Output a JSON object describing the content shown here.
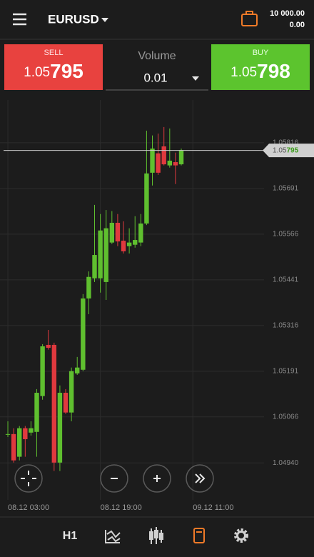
{
  "header": {
    "symbol": "EURUSD",
    "balance": "10 000.00",
    "margin": "0.00"
  },
  "trade": {
    "sell": {
      "label": "SELL",
      "price_big": "1.05",
      "price_pips": "795"
    },
    "volume": {
      "label": "Volume",
      "value": "0.01"
    },
    "buy": {
      "label": "BUY",
      "price_big": "1.05",
      "price_pips": "798"
    }
  },
  "chart_data": {
    "type": "candlestick",
    "x": [
      0,
      1,
      2,
      3,
      4,
      5,
      6,
      7,
      8,
      9,
      10,
      11,
      12,
      13,
      14,
      15,
      16,
      17,
      18,
      19,
      20,
      21,
      22,
      23,
      24,
      25,
      26,
      27,
      28,
      29,
      30
    ],
    "open": [
      1.05017,
      1.05019,
      1.04957,
      1.05035,
      1.05023,
      1.05025,
      1.05123,
      1.05263,
      1.05263,
      1.04941,
      1.05132,
      1.05078,
      1.05185,
      1.05195,
      1.0539,
      1.05445,
      1.05445,
      1.05435,
      1.05543,
      1.05597,
      1.05548,
      1.05533,
      1.05537,
      1.05543,
      1.05595,
      1.05734,
      1.05787,
      1.05806,
      1.05754,
      1.05763,
      1.05757
    ],
    "high": [
      1.05054,
      1.05035,
      1.05041,
      1.05041,
      1.05054,
      1.05142,
      1.05265,
      1.05304,
      1.05269,
      1.05152,
      1.05142,
      1.05201,
      1.0523,
      1.05402,
      1.05464,
      1.05646,
      1.05621,
      1.05632,
      1.05629,
      1.05621,
      1.05601,
      1.05582,
      1.05615,
      1.05621,
      1.05849,
      1.05836,
      1.05841,
      1.05859,
      1.05855,
      1.05789,
      1.058
    ],
    "low": [
      1.05011,
      1.04941,
      1.04947,
      1.04957,
      1.05015,
      1.04957,
      1.05113,
      1.0525,
      1.04918,
      1.04918,
      1.05074,
      1.05054,
      1.05181,
      1.05191,
      1.05347,
      1.05435,
      1.05406,
      1.05386,
      1.05539,
      1.05533,
      1.05513,
      1.05513,
      1.05529,
      1.05533,
      1.05591,
      1.05699,
      1.05728,
      1.05754,
      1.05748,
      1.05703,
      1.05754
    ],
    "close": [
      1.05019,
      1.04947,
      1.05035,
      1.05005,
      1.05035,
      1.05132,
      1.05259,
      1.05255,
      1.04941,
      1.05132,
      1.05078,
      1.05191,
      1.05201,
      1.0539,
      1.05449,
      1.05509,
      1.05576,
      1.05582,
      1.05597,
      1.05546,
      1.05519,
      1.05543,
      1.0555,
      1.05595,
      1.05732,
      1.058,
      1.05734,
      1.05757,
      1.05767,
      1.05754,
      1.05795
    ],
    "up_color": "#5fbf2f",
    "down_color": "#e0393e",
    "xlim": [
      -1.36,
      44.32
    ],
    "xticks": [
      {
        "value": 0,
        "label": "08.12 03:00"
      },
      {
        "value": 16,
        "label": "08.12 19:00"
      },
      {
        "value": 32,
        "label": "09.12 11:00"
      }
    ],
    "ylim": [
      1.04839,
      1.05933
    ],
    "yticks": [
      {
        "value": 1.0494,
        "label": "1.04940"
      },
      1.05066,
      1.05191,
      1.05316,
      1.05441,
      1.05566,
      1.05691,
      1.05816
    ],
    "grid": true,
    "last_price": {
      "value": 1.05795,
      "label_big": "1.05",
      "label_pips": "795"
    }
  },
  "toolbar": {
    "timeframe": "H1"
  }
}
